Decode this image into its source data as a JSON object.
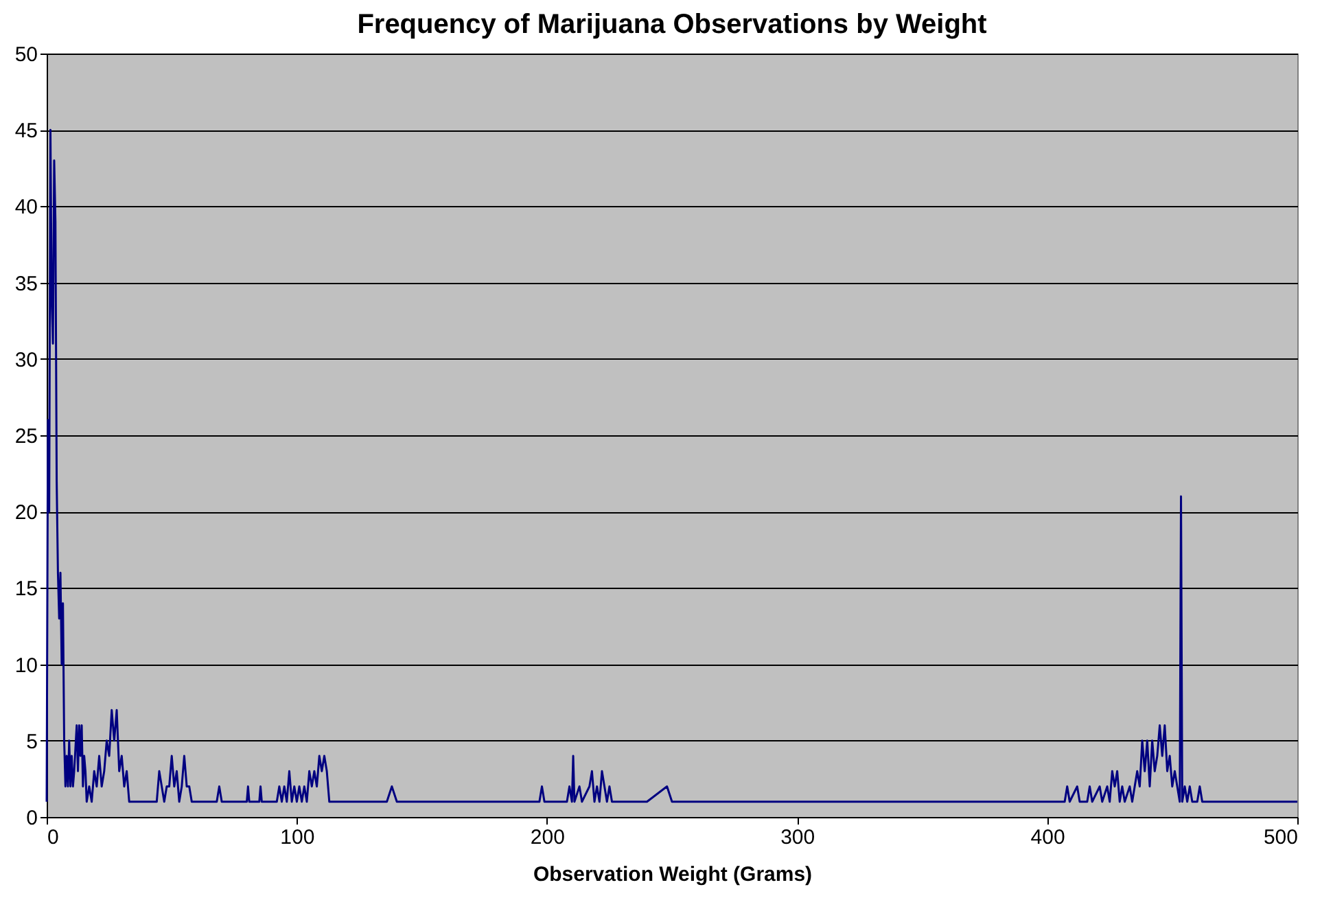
{
  "chart_data": {
    "type": "line",
    "title": "Frequency of Marijuana Observations by Weight",
    "xlabel": "Observation Weight (Grams)",
    "xlim": [
      0,
      500
    ],
    "xticks": [
      0,
      100,
      200,
      300,
      400,
      500
    ],
    "ylim": [
      0,
      50
    ],
    "yticks": [
      0,
      5,
      10,
      15,
      20,
      25,
      30,
      35,
      40,
      45,
      50
    ],
    "grid": "y",
    "legend": false,
    "marker": "none",
    "line_style": "solid",
    "series": [
      {
        "color": "#000080",
        "x": [
          0,
          0.5,
          1,
          1.5,
          2,
          2.5,
          3,
          3.5,
          4,
          4.5,
          5,
          5.5,
          6,
          6.5,
          7,
          7.5,
          8,
          8.5,
          9,
          9.5,
          10,
          10.5,
          11,
          12,
          12.5,
          13,
          13.5,
          14,
          14.5,
          15,
          15.5,
          16,
          17,
          18,
          19,
          20,
          21,
          22,
          23,
          24,
          25,
          26,
          27,
          28,
          29,
          30,
          31,
          32,
          33,
          44,
          45,
          46,
          47,
          48,
          49,
          50,
          51,
          52,
          53,
          54,
          55,
          56,
          57,
          58,
          68,
          69,
          70,
          80,
          80.5,
          81,
          85,
          85.5,
          86,
          92,
          93,
          94,
          95,
          96,
          97,
          98,
          99,
          100,
          101,
          102,
          103,
          104,
          105,
          106,
          107,
          108,
          109,
          110,
          111,
          112,
          113,
          136,
          138,
          140,
          197,
          198,
          199,
          208,
          209,
          210,
          210.5,
          211,
          213,
          214,
          217,
          218,
          219,
          220,
          221,
          222,
          223,
          224,
          225,
          226,
          240,
          248,
          250,
          407,
          408,
          409,
          412,
          413,
          416,
          417,
          418,
          421,
          422,
          424,
          425,
          426,
          427,
          428,
          429,
          430,
          431,
          433,
          434,
          435,
          436,
          437,
          438,
          439,
          440,
          441,
          442,
          443,
          444,
          445,
          446,
          447,
          448,
          449,
          450,
          451,
          452,
          453,
          453.5,
          454,
          455,
          456,
          457,
          458,
          460,
          461,
          462,
          500
        ],
        "values": [
          1,
          26,
          20,
          45,
          34,
          31,
          43,
          39,
          22,
          16,
          13,
          16,
          10,
          14,
          5,
          2,
          4,
          2,
          5,
          2,
          4,
          2,
          3,
          6,
          3,
          6,
          4,
          6,
          2,
          4,
          3,
          1,
          2,
          1,
          3,
          2,
          4,
          2,
          3,
          5,
          4,
          7,
          5,
          7,
          3,
          4,
          2,
          3,
          1,
          1,
          3,
          2,
          1,
          2,
          2,
          4,
          2,
          3,
          1,
          2,
          4,
          2,
          2,
          1,
          1,
          2,
          1,
          1,
          2,
          1,
          1,
          2,
          1,
          1,
          2,
          1,
          2,
          1,
          3,
          1,
          2,
          1,
          2,
          1,
          2,
          1,
          3,
          2,
          3,
          2,
          4,
          3,
          4,
          3,
          1,
          1,
          2,
          1,
          1,
          2,
          1,
          1,
          2,
          1,
          4,
          1,
          2,
          1,
          2,
          3,
          1,
          2,
          1,
          3,
          2,
          1,
          2,
          1,
          1,
          2,
          1,
          1,
          2,
          1,
          2,
          1,
          1,
          2,
          1,
          2,
          1,
          2,
          1,
          3,
          2,
          3,
          1,
          2,
          1,
          2,
          1,
          2,
          3,
          2,
          5,
          3,
          5,
          2,
          5,
          3,
          4,
          6,
          4,
          6,
          3,
          4,
          2,
          3,
          2,
          1,
          21,
          1,
          2,
          1,
          2,
          1,
          1,
          2,
          1,
          1
        ]
      }
    ]
  }
}
